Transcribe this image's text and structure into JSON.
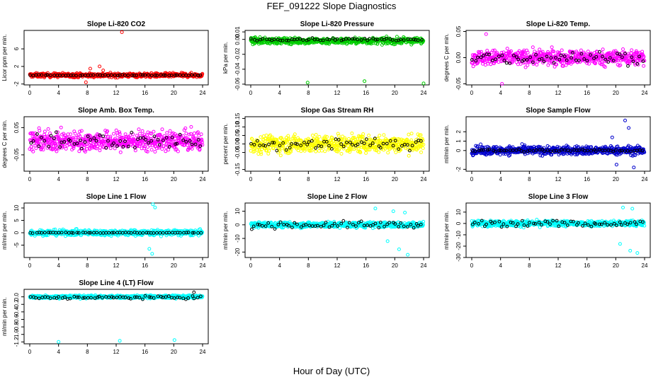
{
  "figure": {
    "title": "FEF_091222  Slope Diagnostics",
    "xlabel": "Hour of Day (UTC)"
  },
  "chart_data": [
    {
      "type": "scatter",
      "title": "Slope Li-820 CO2",
      "ylabel": "Licor ppm per min.",
      "xlim": [
        0,
        24
      ],
      "xticks": [
        "0",
        "4",
        "8",
        "12",
        "16",
        "20",
        "24"
      ],
      "ylim": [
        -2.2,
        10.2
      ],
      "yticks": [
        "-2",
        "2",
        "6"
      ],
      "ytick_values": [
        -2,
        2,
        6
      ],
      "series": [
        {
          "color": "#ff0000",
          "center": 0.0,
          "spread": 0.45,
          "points": 620,
          "outliers": [
            [
              12.8,
              9.8
            ],
            [
              9.7,
              2.0
            ],
            [
              8.4,
              1.5
            ],
            [
              10.2,
              1.1
            ],
            [
              7.8,
              -1.6
            ]
          ]
        },
        {
          "color": "#000000",
          "center": 0.0,
          "spread": 0.1,
          "points": 60
        }
      ]
    },
    {
      "type": "scatter",
      "title": "Slope Li-820 Pressure",
      "ylabel": "kPa per min.",
      "xlim": [
        0,
        24
      ],
      "xticks": [
        "0",
        "4",
        "8",
        "12",
        "16",
        "20",
        "24"
      ],
      "ylim": [
        -0.061,
        0.012
      ],
      "yticks": [
        "-0.06",
        "-0.04",
        "-0.02",
        "0.00",
        "0.01"
      ],
      "ytick_values": [
        -0.06,
        -0.04,
        -0.02,
        0.0,
        0.01
      ],
      "series": [
        {
          "color": "#00cc00",
          "center": -0.002,
          "spread": 0.004,
          "points": 620,
          "outliers": [
            [
              7.9,
              -0.058
            ],
            [
              15.8,
              -0.056
            ],
            [
              24.0,
              -0.059
            ]
          ]
        },
        {
          "color": "#000000",
          "center": 0.0,
          "spread": 0.0015,
          "points": 60
        }
      ]
    },
    {
      "type": "scatter",
      "title": "Slope Li-820 Temp.",
      "ylabel": "degrees C per min.",
      "xlim": [
        0,
        24
      ],
      "xticks": [
        "0",
        "4",
        "8",
        "12",
        "16",
        "20",
        "24"
      ],
      "ylim": [
        -0.052,
        0.052
      ],
      "yticks": [
        "-0.05",
        "0.00",
        "0.05"
      ],
      "ytick_values": [
        -0.05,
        0.0,
        0.05
      ],
      "series": [
        {
          "color": "#ff00ff",
          "center": 0.0,
          "spread": 0.014,
          "points": 620,
          "outliers": [
            [
              4.2,
              -0.05
            ],
            [
              2.0,
              0.045
            ]
          ]
        },
        {
          "color": "#000000",
          "center": 0.0,
          "spread": 0.012,
          "points": 60
        }
      ]
    },
    {
      "type": "scatter",
      "title": "Slope Amb. Box Temp.",
      "ylabel": "degrees C per min.",
      "xlim": [
        0,
        24
      ],
      "xticks": [
        "0",
        "4",
        "8",
        "12",
        "16",
        "20",
        "24"
      ],
      "ylim": [
        -0.11,
        0.09
      ],
      "yticks": [
        "-0.05",
        "0.05"
      ],
      "ytick_values": [
        -0.05,
        0.05
      ],
      "series": [
        {
          "color": "#ff00ff",
          "center": 0.0,
          "spread": 0.035,
          "points": 620
        },
        {
          "color": "#000000",
          "center": 0.0,
          "spread": 0.03,
          "points": 60
        }
      ]
    },
    {
      "type": "scatter",
      "title": "Slope Gas Stream RH",
      "ylabel": "percent per min.",
      "xlim": [
        0,
        24
      ],
      "xticks": [
        "0",
        "4",
        "8",
        "12",
        "16",
        "20",
        "24"
      ],
      "ylim": [
        -0.16,
        0.16
      ],
      "yticks": [
        "-0.15",
        "-0.05",
        "0.00",
        "0.05",
        "0.10",
        "0.15"
      ],
      "ytick_values": [
        -0.15,
        -0.05,
        0.0,
        0.05,
        0.1,
        0.15
      ],
      "series": [
        {
          "color": "#ffff00",
          "center": 0.0,
          "spread": 0.05,
          "points": 620
        },
        {
          "color": "#000000",
          "center": 0.0,
          "spread": 0.035,
          "points": 60
        }
      ]
    },
    {
      "type": "scatter",
      "title": "Slope Sample Flow",
      "ylabel": "ml/min per min.",
      "xlim": [
        0,
        24
      ],
      "xticks": [
        "0",
        "4",
        "8",
        "12",
        "16",
        "20",
        "24"
      ],
      "ylim": [
        -2.2,
        3.6
      ],
      "yticks": [
        "-2",
        "0",
        "1",
        "2"
      ],
      "ytick_values": [
        -2,
        0,
        1,
        2
      ],
      "series": [
        {
          "color": "#0000cc",
          "center": 0.0,
          "spread": 0.45,
          "points": 620,
          "outliers": [
            [
              21.3,
              3.2
            ],
            [
              21.8,
              2.4
            ],
            [
              19.5,
              1.4
            ],
            [
              22.5,
              -1.8
            ],
            [
              20.1,
              -1.5
            ]
          ]
        },
        {
          "color": "#000000",
          "center": 0.0,
          "spread": 0.15,
          "points": 60
        }
      ]
    },
    {
      "type": "scatter",
      "title": "Slope Line 1 Flow",
      "ylabel": "ml/min per min.",
      "xlim": [
        0,
        24
      ],
      "xticks": [
        "0",
        "4",
        "8",
        "12",
        "16",
        "20",
        "24"
      ],
      "ylim": [
        -10,
        12
      ],
      "yticks": [
        "-5",
        "0",
        "5",
        "10"
      ],
      "ytick_values": [
        -5,
        0,
        5,
        10
      ],
      "series": [
        {
          "color": "#00ffff",
          "center": 0.0,
          "spread": 1.1,
          "points": 620,
          "outliers": [
            [
              17.1,
              11.5
            ],
            [
              17.4,
              10.2
            ],
            [
              16.6,
              -6.5
            ],
            [
              17.0,
              -8.5
            ]
          ]
        },
        {
          "color": "#000000",
          "center": 0.0,
          "spread": 0.15,
          "points": 60
        }
      ]
    },
    {
      "type": "scatter",
      "title": "Slope Line 2 Flow",
      "ylabel": "ml/min per min.",
      "xlim": [
        0,
        24
      ],
      "xticks": [
        "0",
        "4",
        "8",
        "12",
        "16",
        "20",
        "24"
      ],
      "ylim": [
        -24,
        16
      ],
      "yticks": [
        "-20",
        "-10",
        "0",
        "10"
      ],
      "ytick_values": [
        -20,
        -10,
        0,
        10
      ],
      "series": [
        {
          "color": "#00ffff",
          "center": 0.0,
          "spread": 2.0,
          "points": 620,
          "outliers": [
            [
              17.3,
              12
            ],
            [
              19.8,
              10
            ],
            [
              21.4,
              9
            ],
            [
              19.0,
              -12
            ],
            [
              20.6,
              -18
            ],
            [
              21.8,
              -22
            ]
          ]
        },
        {
          "color": "#000000",
          "center": 0.0,
          "spread": 2.5,
          "points": 60
        }
      ]
    },
    {
      "type": "scatter",
      "title": "Slope Line 3 Flow",
      "ylabel": "ml/min per min.",
      "xlim": [
        0,
        24
      ],
      "xticks": [
        "0",
        "4",
        "8",
        "12",
        "16",
        "20",
        "24"
      ],
      "ylim": [
        -30,
        18
      ],
      "yticks": [
        "-30",
        "-20",
        "-10",
        "0",
        "10"
      ],
      "ytick_values": [
        -30,
        -20,
        -10,
        0,
        10
      ],
      "series": [
        {
          "color": "#00ffff",
          "center": 0.0,
          "spread": 2.5,
          "points": 620,
          "outliers": [
            [
              21.0,
              14
            ],
            [
              22.3,
              13
            ],
            [
              20.6,
              -18
            ],
            [
              22.0,
              -24
            ],
            [
              23.0,
              -26
            ]
          ]
        },
        {
          "color": "#000000",
          "center": 0.0,
          "spread": 3.0,
          "points": 60
        }
      ]
    },
    {
      "type": "scatter",
      "title": "Slope Line 4 (LT) Flow",
      "ylabel": "ml/min per min.",
      "xlim": [
        0,
        24
      ],
      "xticks": [
        "0",
        "4",
        "8",
        "12",
        "16",
        "20",
        "24"
      ],
      "ylim": [
        -1.25,
        0.2
      ],
      "yticks": [
        "-1.2",
        "-1.0",
        "-0.8",
        "-0.6",
        "-0.4",
        "-0.2",
        "0.0"
      ],
      "ytick_values": [
        -1.2,
        -1.0,
        -0.8,
        -0.6,
        -0.4,
        -0.2,
        0.0
      ],
      "series": [
        {
          "color": "#00ffff",
          "center": 0.0,
          "spread": 0.04,
          "points": 620,
          "outliers": [
            [
              4.0,
              -1.2
            ],
            [
              12.5,
              -1.17
            ],
            [
              20.1,
              -1.15
            ]
          ]
        },
        {
          "color": "#000000",
          "center": -0.02,
          "spread": 0.04,
          "points": 60,
          "outliers": [
            [
              22.8,
              0.12
            ]
          ]
        }
      ]
    }
  ]
}
